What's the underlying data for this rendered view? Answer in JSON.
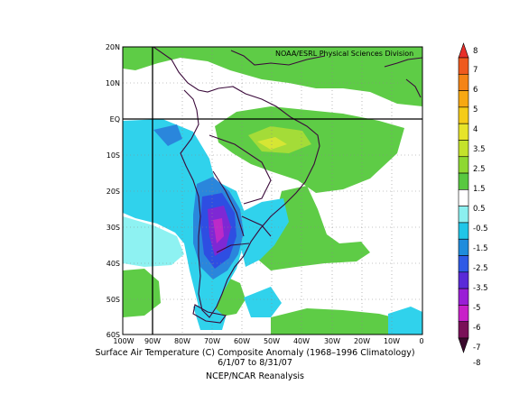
{
  "map": {
    "credit": "NOAA/ESRL Physical Sciences Division",
    "lat_labels": [
      "20N",
      "10N",
      "EQ",
      "10S",
      "20S",
      "30S",
      "40S",
      "50S",
      "60S"
    ],
    "lon_labels": [
      "100W",
      "90W",
      "80W",
      "70W",
      "60W",
      "50W",
      "40W",
      "30W",
      "20W",
      "10W",
      "0"
    ],
    "lat_range": [
      -60,
      20
    ],
    "lon_range": [
      -100,
      0
    ],
    "grid": "dotted",
    "reference_lines": [
      "Equator",
      "90W"
    ]
  },
  "colorbar": {
    "labels": [
      "8",
      "7",
      "6",
      "5",
      "4",
      "3.5",
      "2.5",
      "1.5",
      "0.5",
      "-0.5",
      "-1.5",
      "-2.5",
      "-3.5",
      "-5",
      "-6",
      "-7",
      "-8"
    ],
    "colors": [
      "#e8302a",
      "#ef5a1e",
      "#f48416",
      "#f7a812",
      "#f5cc18",
      "#e7e42a",
      "#c4e22c",
      "#8ed832",
      "#58c840",
      "#ffffff",
      "#8cf0f0",
      "#20c6e8",
      "#1f8cdc",
      "#2f5ae6",
      "#5a2ad8",
      "#9a1ed6",
      "#c820c8",
      "#7a1058",
      "#3a0a2c"
    ]
  },
  "anomaly_colors": {
    "green": "#5ecc46",
    "light_green": "#a4dc38",
    "yellow_green": "#d6e634",
    "cyan": "#30d2ec",
    "light_cyan": "#8ef2f2",
    "blue": "#2a86dc",
    "dark_blue": "#2e4ee2",
    "purple": "#7e28d4",
    "magenta": "#bc2ac8"
  },
  "caption": {
    "line1": "Surface Air Temperature (C) Composite Anomaly (1968–1996 Climatology)",
    "line2": "6/1/07  to 8/31/07",
    "line3": "NCEP/NCAR Reanalysis"
  }
}
